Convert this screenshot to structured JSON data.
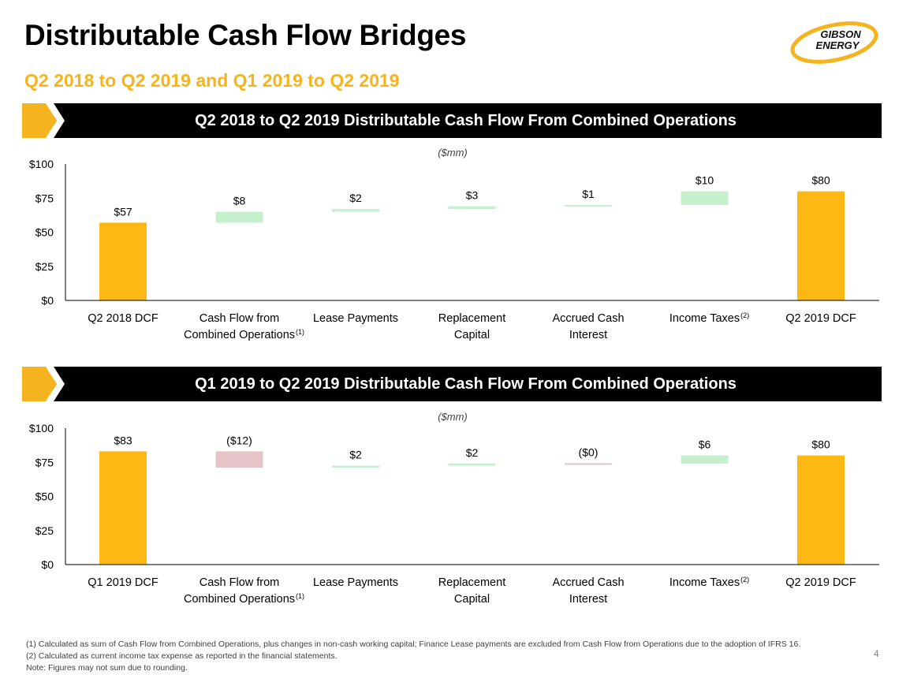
{
  "page": {
    "title": "Distributable Cash Flow Bridges",
    "subtitle": "Q2 2018 to Q2 2019 and Q1 2019 to Q2 2019",
    "logo_text_line1": "GIBSON",
    "logo_text_line2": "ENERGY",
    "page_number": "4"
  },
  "colors": {
    "total_bar": "#FDB813",
    "increase_bar": "#C6EFCE",
    "decrease_bar": "#E6C3C8",
    "accent": "#F5B41E",
    "banner": "#000000"
  },
  "footnotes": [
    "(1) Calculated as sum of Cash Flow from Combined Operations, plus changes in non-cash working capital; Finance Lease payments are excluded from Cash Flow from Operations due to the adoption of IFRS 16.",
    "(2) Calculated as current income tax expense as reported in the financial statements.",
    "Note: Figures may not sum due to rounding."
  ],
  "chart_data": [
    {
      "type": "bar",
      "subtype": "waterfall",
      "title": "Q2 2018 to Q2 2019 Distributable Cash Flow From Combined Operations",
      "unit_label": "($mm)",
      "categories": [
        {
          "line1": "Q2 2018 DCF",
          "line2": "",
          "sup": ""
        },
        {
          "line1": "Cash Flow from",
          "line2": "Combined Operations",
          "sup": "(1)"
        },
        {
          "line1": "Lease Payments",
          "line2": "",
          "sup": ""
        },
        {
          "line1": "Replacement",
          "line2": "Capital",
          "sup": ""
        },
        {
          "line1": "Accrued Cash",
          "line2": "Interest",
          "sup": ""
        },
        {
          "line1": "Income Taxes",
          "line2": "",
          "sup": "(2)"
        },
        {
          "line1": "Q2 2019 DCF",
          "line2": "",
          "sup": ""
        }
      ],
      "bars": [
        {
          "kind": "total",
          "low": 0,
          "high": 57,
          "value": 57,
          "label": "$57"
        },
        {
          "kind": "increase",
          "low": 57,
          "high": 65,
          "value": 8,
          "label": "$8"
        },
        {
          "kind": "increase",
          "low": 65,
          "high": 67,
          "value": 2,
          "label": "$2"
        },
        {
          "kind": "increase",
          "low": 67,
          "high": 69,
          "value": 3,
          "label": "$3"
        },
        {
          "kind": "increase",
          "low": 69,
          "high": 70,
          "value": 1,
          "label": "$1"
        },
        {
          "kind": "increase",
          "low": 70,
          "high": 80,
          "value": 10,
          "label": "$10"
        },
        {
          "kind": "total",
          "low": 0,
          "high": 80,
          "value": 80,
          "label": "$80"
        }
      ],
      "y_ticks": [
        "$0",
        "$25",
        "$50",
        "$75",
        "$100"
      ],
      "ylim": [
        0,
        100
      ],
      "grid": false
    },
    {
      "type": "bar",
      "subtype": "waterfall",
      "title": "Q1 2019 to Q2 2019 Distributable Cash Flow From Combined Operations",
      "unit_label": "($mm)",
      "categories": [
        {
          "line1": "Q1 2019 DCF",
          "line2": "",
          "sup": ""
        },
        {
          "line1": "Cash Flow from",
          "line2": "Combined Operations",
          "sup": "(1)"
        },
        {
          "line1": "Lease Payments",
          "line2": "",
          "sup": ""
        },
        {
          "line1": "Replacement",
          "line2": "Capital",
          "sup": ""
        },
        {
          "line1": "Accrued Cash",
          "line2": "Interest",
          "sup": ""
        },
        {
          "line1": "Income Taxes",
          "line2": "",
          "sup": "(2)"
        },
        {
          "line1": "Q2 2019 DCF",
          "line2": "",
          "sup": ""
        }
      ],
      "bars": [
        {
          "kind": "total",
          "low": 0,
          "high": 83,
          "value": 83,
          "label": "$83"
        },
        {
          "kind": "decrease",
          "low": 71,
          "high": 83,
          "value": -12,
          "label": "($12)"
        },
        {
          "kind": "increase",
          "low": 71,
          "high": 72.5,
          "value": 2,
          "label": "$2"
        },
        {
          "kind": "increase",
          "low": 72.5,
          "high": 74,
          "value": 2,
          "label": "$2"
        },
        {
          "kind": "decrease",
          "low": 73.7,
          "high": 74.3,
          "value": 0,
          "label": "($0)"
        },
        {
          "kind": "increase",
          "low": 74,
          "high": 80,
          "value": 6,
          "label": "$6"
        },
        {
          "kind": "total",
          "low": 0,
          "high": 80,
          "value": 80,
          "label": "$80"
        }
      ],
      "y_ticks": [
        "$0",
        "$25",
        "$50",
        "$75",
        "$100"
      ],
      "ylim": [
        0,
        100
      ],
      "grid": false
    }
  ]
}
